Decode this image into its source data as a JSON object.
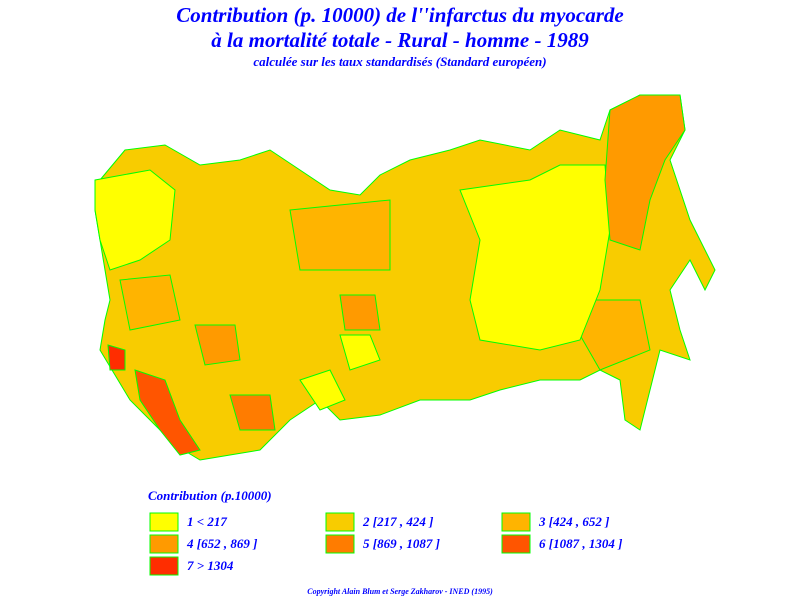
{
  "header": {
    "title_line1": "Contribution (p. 10000) de l''infarctus du myocarde",
    "title_line2": "à la mortalité totale  -  Rural  -  homme  -  1989",
    "subtitle": "calculée sur les taux standardisés (Standard européen)"
  },
  "legend": {
    "title": "Contribution  (p.10000)",
    "items": [
      {
        "label": "1  <  217",
        "color": "#ffff00"
      },
      {
        "label": "2 [217 , 424 ]",
        "color": "#f8cc00"
      },
      {
        "label": "3 [424 , 652 ]",
        "color": "#ffb400"
      },
      {
        "label": "4 [652 , 869 ]",
        "color": "#ff9a00"
      },
      {
        "label": "5 [869 , 1087 ]",
        "color": "#ff7c00"
      },
      {
        "label": "6 [1087 , 1304 ]",
        "color": "#ff5500"
      },
      {
        "label": "7  >  1304",
        "color": "#ff2d00"
      }
    ]
  },
  "footer": {
    "copyright": "Copyright  Alain  Blum  et  Serge  Zakharov  -  INED (1995)"
  }
}
